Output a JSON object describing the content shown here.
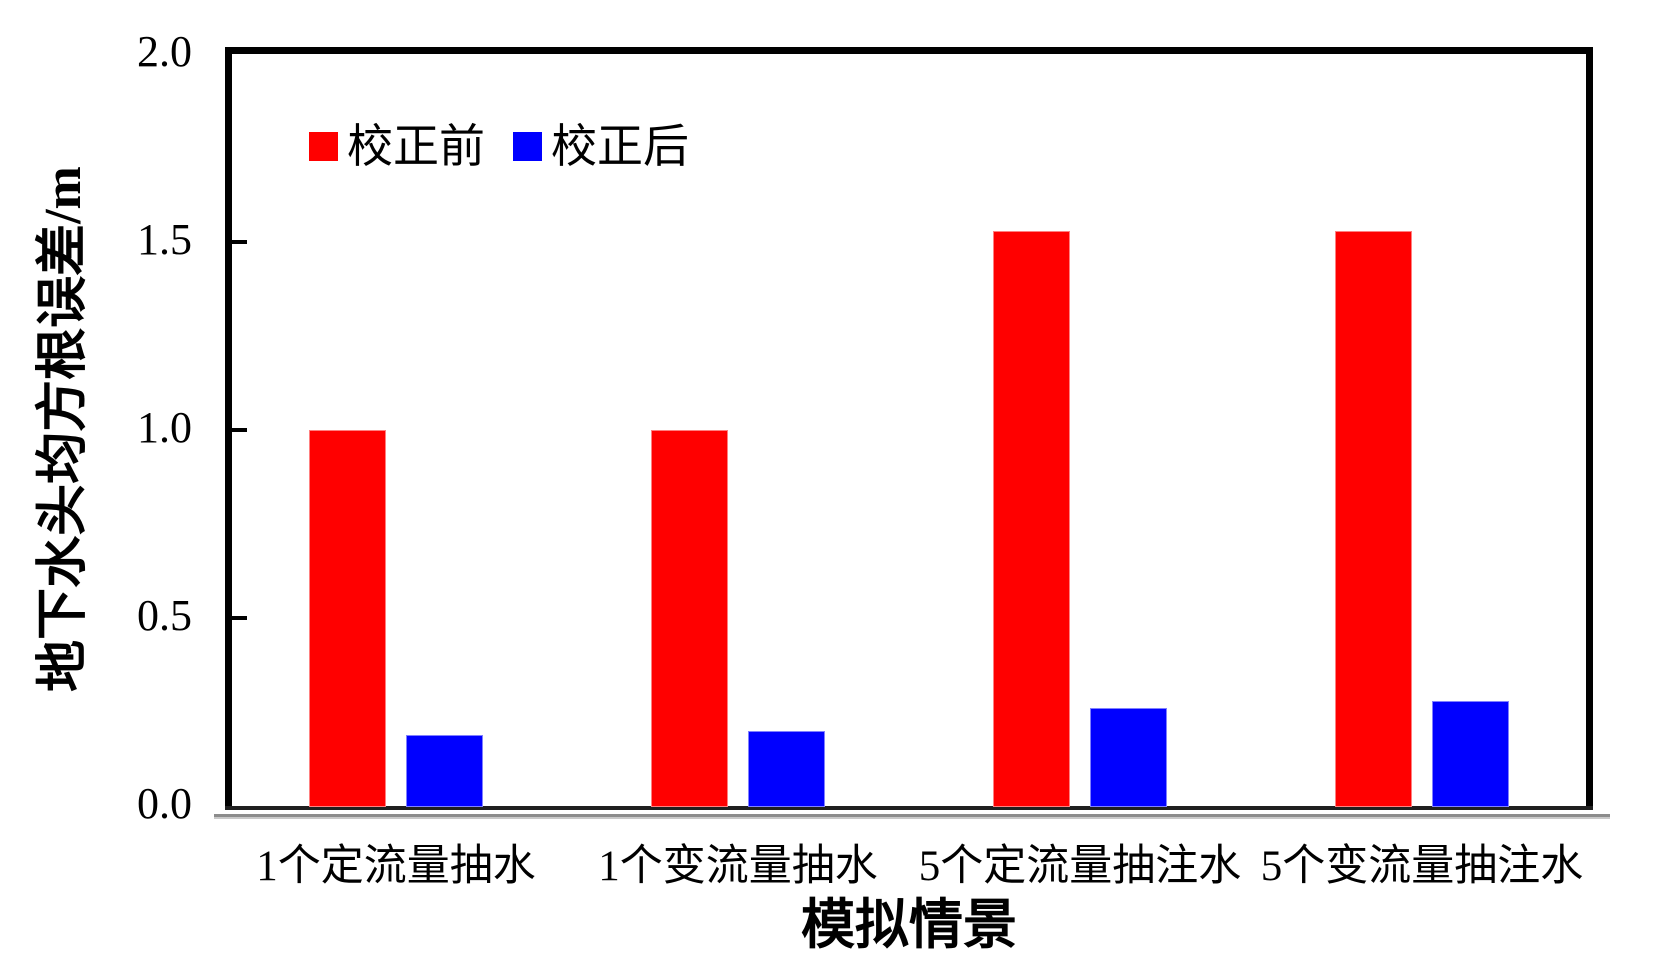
{
  "chart_data": {
    "type": "bar",
    "title": "",
    "categories": [
      "1个定流量抽水",
      "1个变流量抽水",
      "5个定流量抽注水",
      "5个变流量抽注水"
    ],
    "series": [
      {
        "name": "校正前",
        "color": "#ff0000",
        "border_color": "#ff8080",
        "values": [
          1.0,
          1.0,
          1.53,
          1.53
        ]
      },
      {
        "name": "校正后",
        "color": "#0000ff",
        "border_color": "#8080ff",
        "values": [
          0.19,
          0.2,
          0.26,
          0.28
        ]
      }
    ],
    "xlabel": "模拟情景",
    "ylabel": "地下水头均方根误差/m",
    "ylim": [
      0.0,
      2.0
    ],
    "yticks": [
      0.0,
      0.5,
      1.0,
      1.5,
      2.0
    ],
    "ytick_labels": [
      "0.0",
      "0.5",
      "1.0",
      "1.5",
      "2.0"
    ],
    "grid": false,
    "legend_position": "inside-top-left",
    "axis_color": "#000000",
    "background_color": "#ffffff"
  }
}
